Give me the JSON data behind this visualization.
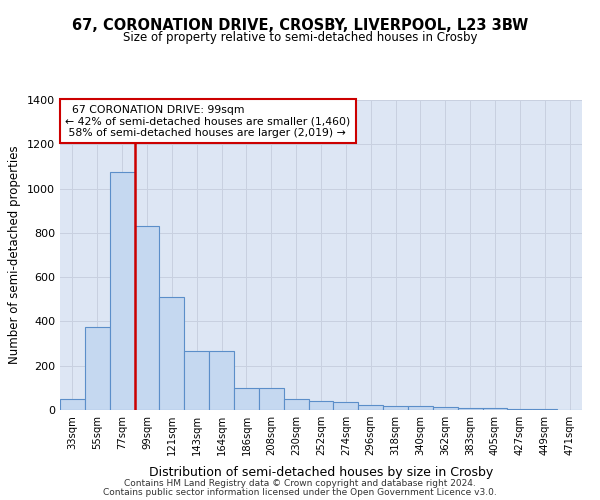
{
  "title": "67, CORONATION DRIVE, CROSBY, LIVERPOOL, L23 3BW",
  "subtitle": "Size of property relative to semi-detached houses in Crosby",
  "xlabel": "Distribution of semi-detached houses by size in Crosby",
  "ylabel": "Number of semi-detached properties",
  "categories": [
    "33sqm",
    "55sqm",
    "77sqm",
    "99sqm",
    "121sqm",
    "143sqm",
    "164sqm",
    "186sqm",
    "208sqm",
    "230sqm",
    "252sqm",
    "274sqm",
    "296sqm",
    "318sqm",
    "340sqm",
    "362sqm",
    "383sqm",
    "405sqm",
    "427sqm",
    "449sqm",
    "471sqm"
  ],
  "values": [
    50,
    375,
    1075,
    830,
    510,
    265,
    265,
    100,
    100,
    50,
    40,
    35,
    22,
    20,
    18,
    13,
    10,
    8,
    5,
    3,
    2
  ],
  "bar_color": "#c5d8f0",
  "bar_edge_color": "#5b8ec9",
  "marker_index": 3,
  "marker_label": "67 CORONATION DRIVE: 99sqm",
  "smaller_pct": 42,
  "smaller_count": 1460,
  "larger_pct": 58,
  "larger_count": 2019,
  "vline_color": "#cc0000",
  "annotation_box_color": "#cc0000",
  "ylim": [
    0,
    1400
  ],
  "yticks": [
    0,
    200,
    400,
    600,
    800,
    1000,
    1200,
    1400
  ],
  "grid_color": "#c8d0e0",
  "bg_color": "#dde6f4",
  "footnote1": "Contains HM Land Registry data © Crown copyright and database right 2024.",
  "footnote2": "Contains public sector information licensed under the Open Government Licence v3.0."
}
